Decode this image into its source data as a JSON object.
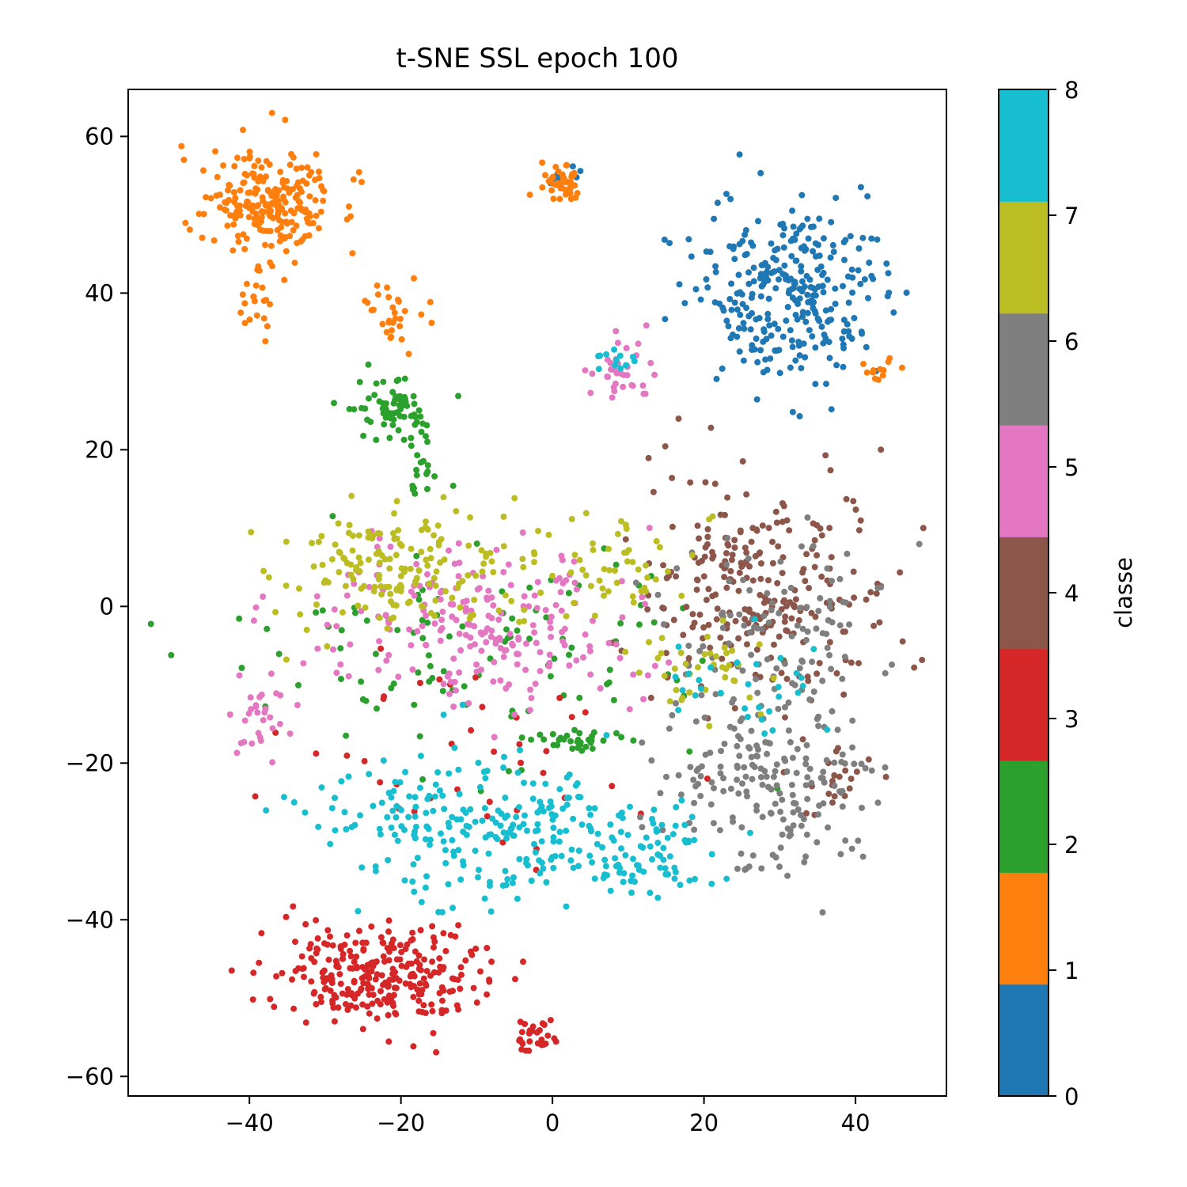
{
  "chart_data": {
    "type": "scatter",
    "title": "t-SNE SSL epoch 100",
    "xlabel": "",
    "ylabel": "",
    "xlim": [
      -56,
      52
    ],
    "ylim": [
      -62.5,
      66
    ],
    "xticks": [
      -40,
      -20,
      0,
      20,
      40
    ],
    "yticks": [
      -60,
      -40,
      -20,
      0,
      20,
      40,
      60
    ],
    "grid": false,
    "colorbar": {
      "label": "classe",
      "range": [
        0,
        8
      ],
      "ticks": [
        0,
        1,
        2,
        3,
        4,
        5,
        6,
        7,
        8
      ],
      "colors": [
        "#1f77b4",
        "#ff7f0e",
        "#2ca02c",
        "#d62728",
        "#8c564b",
        "#e377c2",
        "#7f7f7f",
        "#bcbd22",
        "#17becf"
      ]
    },
    "clusters": [
      {
        "class": 0,
        "cx": 31,
        "cy": 40,
        "rx": 11,
        "ry": 11,
        "n": 300
      },
      {
        "class": 0,
        "cx": 2,
        "cy": 55,
        "rx": 3,
        "ry": 1.5,
        "n": 8
      },
      {
        "class": 1,
        "cx": -38,
        "cy": 52,
        "rx": 9,
        "ry": 6,
        "n": 230
      },
      {
        "class": 1,
        "cx": -39,
        "cy": 40,
        "rx": 2,
        "ry": 4,
        "n": 20
      },
      {
        "class": 1,
        "cx": 1,
        "cy": 54,
        "rx": 2.5,
        "ry": 2,
        "n": 45
      },
      {
        "class": 1,
        "cx": -21,
        "cy": 37,
        "rx": 4,
        "ry": 4,
        "n": 30
      },
      {
        "class": 1,
        "cx": 43,
        "cy": 30,
        "rx": 3,
        "ry": 1.5,
        "n": 12
      },
      {
        "class": 2,
        "cx": -20,
        "cy": 25,
        "rx": 5,
        "ry": 4,
        "n": 75
      },
      {
        "class": 2,
        "cx": -17,
        "cy": 17,
        "rx": 2,
        "ry": 3,
        "n": 15
      },
      {
        "class": 2,
        "cx": 3,
        "cy": -17,
        "rx": 5,
        "ry": 1.5,
        "n": 30
      },
      {
        "class": 2,
        "cx": -10,
        "cy": -5,
        "rx": 28,
        "ry": 14,
        "n": 110
      },
      {
        "class": 3,
        "cx": -23,
        "cy": -47,
        "rx": 12,
        "ry": 6,
        "n": 280
      },
      {
        "class": 3,
        "cx": -2,
        "cy": -55,
        "rx": 3,
        "ry": 2,
        "n": 30
      },
      {
        "class": 3,
        "cx": -10,
        "cy": -20,
        "rx": 25,
        "ry": 12,
        "n": 40
      },
      {
        "class": 4,
        "cx": 27,
        "cy": 2,
        "rx": 14,
        "ry": 13,
        "n": 260
      },
      {
        "class": 4,
        "cx": 38,
        "cy": -22,
        "rx": 5,
        "ry": 5,
        "n": 20
      },
      {
        "class": 5,
        "cx": -10,
        "cy": -2,
        "rx": 20,
        "ry": 10,
        "n": 220
      },
      {
        "class": 5,
        "cx": -38,
        "cy": -14,
        "rx": 4,
        "ry": 5,
        "n": 30
      },
      {
        "class": 5,
        "cx": 9,
        "cy": 30,
        "rx": 4,
        "ry": 4,
        "n": 35
      },
      {
        "class": 6,
        "cx": 28,
        "cy": -22,
        "rx": 13,
        "ry": 12,
        "n": 200
      },
      {
        "class": 6,
        "cx": 30,
        "cy": -2,
        "rx": 12,
        "ry": 10,
        "n": 90
      },
      {
        "class": 7,
        "cx": -22,
        "cy": 5,
        "rx": 14,
        "ry": 7,
        "n": 160
      },
      {
        "class": 7,
        "cx": 5,
        "cy": 5,
        "rx": 12,
        "ry": 6,
        "n": 60
      },
      {
        "class": 7,
        "cx": 20,
        "cy": -8,
        "rx": 10,
        "ry": 5,
        "n": 40
      },
      {
        "class": 8,
        "cx": -10,
        "cy": -28,
        "rx": 18,
        "ry": 8,
        "n": 240
      },
      {
        "class": 8,
        "cx": 12,
        "cy": -32,
        "rx": 8,
        "ry": 5,
        "n": 80
      },
      {
        "class": 8,
        "cx": 9,
        "cy": 32,
        "rx": 3,
        "ry": 2,
        "n": 12
      },
      {
        "class": 8,
        "cx": 25,
        "cy": -10,
        "rx": 12,
        "ry": 6,
        "n": 30
      }
    ]
  }
}
